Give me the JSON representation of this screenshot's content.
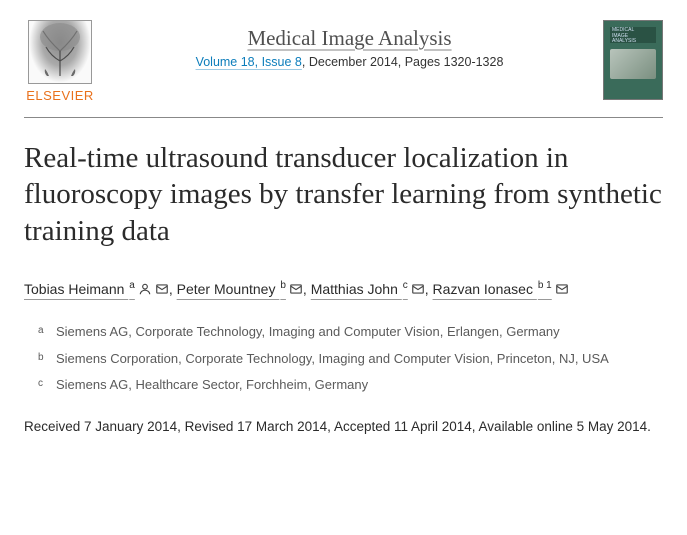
{
  "publisher": {
    "name": "ELSEVIER"
  },
  "journal": {
    "name": "Medical Image Analysis",
    "issue_link_text": "Volume 18, Issue 8",
    "date_pages": ", December 2014, Pages 1320-1328",
    "cover_label": "MEDICAL\nIMAGE\nANALYSIS"
  },
  "article": {
    "title": "Real-time ultrasound transducer localization in fluoroscopy images by transfer learning from synthetic training data"
  },
  "authors": [
    {
      "name": "Tobias Heimann",
      "affil": "a",
      "person": true,
      "mail": true
    },
    {
      "name": "Peter Mountney",
      "affil": "b",
      "person": false,
      "mail": true
    },
    {
      "name": "Matthias John",
      "affil": "c",
      "person": false,
      "mail": true
    },
    {
      "name": "Razvan Ionasec",
      "affil": "b 1",
      "person": false,
      "mail": true
    }
  ],
  "affiliations": [
    {
      "key": "a",
      "text": "Siemens AG, Corporate Technology, Imaging and Computer Vision, Erlangen, Germany"
    },
    {
      "key": "b",
      "text": "Siemens Corporation, Corporate Technology, Imaging and Computer Vision, Princeton, NJ, USA"
    },
    {
      "key": "c",
      "text": "Siemens AG, Healthcare Sector, Forchheim, Germany"
    }
  ],
  "history": "Received 7 January 2014, Revised 17 March 2014, Accepted 11 April 2014, Available online 5 May 2014."
}
